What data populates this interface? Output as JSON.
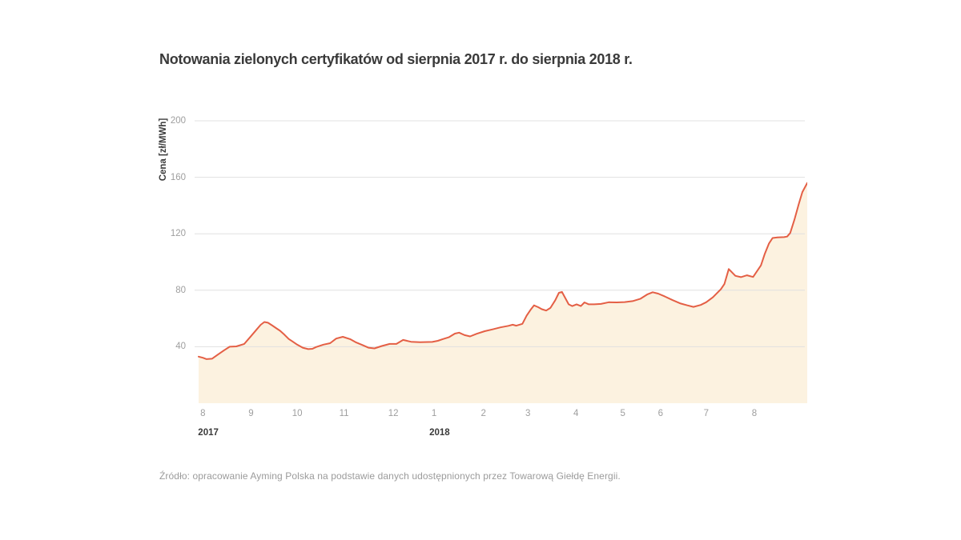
{
  "chart_data": {
    "type": "area",
    "title": "Notowania zielonych certyfikatów od sierpnia 2017 r. do sierpnia 2018 r.",
    "ylabel": "Cena [zł/MWh]",
    "xlabel": "",
    "source": "Źródło: opracowanie Ayming Polska na podstawie danych udostępnionych przez Towarową Giełdę Energii.",
    "ylim": [
      0,
      210
    ],
    "y_ticks": [
      40,
      80,
      120,
      160,
      200
    ],
    "grid": true,
    "legend": false,
    "line_color": "#e45f45",
    "fill_color": "#fcf2e0",
    "grid_color": "#e0e0e0",
    "x_ticks": [
      {
        "label": "8",
        "pos": 0.007
      },
      {
        "label": "9",
        "pos": 0.086
      },
      {
        "label": "10",
        "pos": 0.162
      },
      {
        "label": "11",
        "pos": 0.239
      },
      {
        "label": "12",
        "pos": 0.32
      },
      {
        "label": "1",
        "pos": 0.387
      },
      {
        "label": "2",
        "pos": 0.468
      },
      {
        "label": "3",
        "pos": 0.541
      },
      {
        "label": "4",
        "pos": 0.62
      },
      {
        "label": "5",
        "pos": 0.697
      },
      {
        "label": "6",
        "pos": 0.759
      },
      {
        "label": "7",
        "pos": 0.834
      },
      {
        "label": "8",
        "pos": 0.913
      }
    ],
    "year_labels": [
      {
        "label": "2017",
        "pos": 0.007
      },
      {
        "label": "2018",
        "pos": 0.387
      }
    ],
    "points": [
      [
        0.0,
        33.0
      ],
      [
        0.007,
        32.2
      ],
      [
        0.013,
        31.2
      ],
      [
        0.022,
        31.5
      ],
      [
        0.032,
        34.5
      ],
      [
        0.042,
        37.5
      ],
      [
        0.051,
        40.0
      ],
      [
        0.062,
        40.2
      ],
      [
        0.075,
        42.0
      ],
      [
        0.086,
        47.5
      ],
      [
        0.095,
        52.0
      ],
      [
        0.102,
        55.5
      ],
      [
        0.108,
        57.5
      ],
      [
        0.114,
        57.0
      ],
      [
        0.121,
        55.0
      ],
      [
        0.128,
        53.0
      ],
      [
        0.134,
        51.3
      ],
      [
        0.141,
        48.5
      ],
      [
        0.148,
        45.5
      ],
      [
        0.155,
        43.5
      ],
      [
        0.162,
        41.5
      ],
      [
        0.171,
        39.3
      ],
      [
        0.18,
        38.3
      ],
      [
        0.187,
        38.5
      ],
      [
        0.193,
        39.8
      ],
      [
        0.205,
        41.5
      ],
      [
        0.216,
        42.5
      ],
      [
        0.226,
        45.8
      ],
      [
        0.237,
        47.0
      ],
      [
        0.249,
        45.4
      ],
      [
        0.259,
        43.0
      ],
      [
        0.27,
        41.0
      ],
      [
        0.279,
        39.3
      ],
      [
        0.289,
        38.8
      ],
      [
        0.301,
        40.5
      ],
      [
        0.314,
        42.0
      ],
      [
        0.325,
        42.0
      ],
      [
        0.336,
        44.8
      ],
      [
        0.349,
        43.5
      ],
      [
        0.364,
        43.2
      ],
      [
        0.384,
        43.4
      ],
      [
        0.393,
        44.2
      ],
      [
        0.401,
        45.4
      ],
      [
        0.411,
        46.7
      ],
      [
        0.421,
        49.3
      ],
      [
        0.428,
        50.0
      ],
      [
        0.437,
        48.2
      ],
      [
        0.446,
        47.3
      ],
      [
        0.457,
        49.2
      ],
      [
        0.47,
        51.0
      ],
      [
        0.483,
        52.3
      ],
      [
        0.496,
        53.7
      ],
      [
        0.509,
        54.8
      ],
      [
        0.516,
        55.6
      ],
      [
        0.522,
        54.9
      ],
      [
        0.532,
        56.2
      ],
      [
        0.539,
        62.0
      ],
      [
        0.546,
        66.5
      ],
      [
        0.551,
        69.3
      ],
      [
        0.558,
        68.0
      ],
      [
        0.564,
        66.6
      ],
      [
        0.571,
        65.6
      ],
      [
        0.578,
        67.5
      ],
      [
        0.586,
        73.0
      ],
      [
        0.592,
        78.2
      ],
      [
        0.597,
        78.8
      ],
      [
        0.608,
        70.0
      ],
      [
        0.614,
        68.8
      ],
      [
        0.621,
        70.0
      ],
      [
        0.628,
        68.8
      ],
      [
        0.634,
        71.4
      ],
      [
        0.641,
        70.0
      ],
      [
        0.65,
        70.0
      ],
      [
        0.661,
        70.3
      ],
      [
        0.674,
        71.5
      ],
      [
        0.687,
        71.4
      ],
      [
        0.7,
        71.6
      ],
      [
        0.713,
        72.3
      ],
      [
        0.726,
        74.0
      ],
      [
        0.737,
        77.0
      ],
      [
        0.746,
        78.6
      ],
      [
        0.755,
        77.6
      ],
      [
        0.766,
        75.6
      ],
      [
        0.779,
        73.0
      ],
      [
        0.792,
        70.6
      ],
      [
        0.803,
        69.3
      ],
      [
        0.813,
        68.2
      ],
      [
        0.825,
        69.6
      ],
      [
        0.834,
        71.5
      ],
      [
        0.845,
        75.0
      ],
      [
        0.858,
        80.7
      ],
      [
        0.864,
        84.5
      ],
      [
        0.871,
        95.0
      ],
      [
        0.882,
        90.2
      ],
      [
        0.891,
        89.3
      ],
      [
        0.901,
        90.6
      ],
      [
        0.911,
        89.4
      ],
      [
        0.924,
        97.6
      ],
      [
        0.93,
        105.5
      ],
      [
        0.937,
        113.0
      ],
      [
        0.943,
        117.0
      ],
      [
        0.951,
        117.4
      ],
      [
        0.962,
        117.6
      ],
      [
        0.967,
        118.0
      ],
      [
        0.972,
        120.5
      ],
      [
        0.979,
        130.0
      ],
      [
        0.986,
        141.0
      ],
      [
        0.992,
        149.5
      ],
      [
        1.0,
        156.0
      ]
    ]
  }
}
